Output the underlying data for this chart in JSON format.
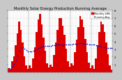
{
  "title": "Monthly Solar Energy Production Running Average",
  "bar_color": "#dd0000",
  "avg_dot_color": "#0000cc",
  "background_color": "#c8c8c8",
  "plot_bg_color": "#ffffff",
  "grid_color": "#aaaaaa",
  "ylim": [
    0,
    8
  ],
  "ytick_labels": [
    "1",
    "2",
    "3",
    "4",
    "5",
    "6",
    "7",
    "8"
  ],
  "ytick_values": [
    1,
    2,
    3,
    4,
    5,
    6,
    7,
    8
  ],
  "values": [
    0.5,
    0.3,
    1.4,
    2.0,
    3.5,
    5.0,
    6.5,
    5.5,
    3.8,
    2.0,
    0.9,
    0.4,
    0.9,
    0.5,
    1.8,
    3.2,
    5.2,
    6.8,
    7.5,
    6.2,
    4.5,
    2.8,
    1.1,
    0.6,
    1.0,
    0.7,
    2.2,
    3.8,
    5.5,
    7.0,
    7.0,
    6.0,
    4.8,
    3.0,
    1.4,
    0.7,
    1.1,
    0.9,
    2.6,
    4.2,
    5.8,
    7.3,
    6.8,
    5.8,
    4.3,
    2.6,
    1.2,
    0.5,
    0.9,
    0.4,
    1.8,
    3.5,
    5.2,
    6.5,
    6.2,
    5.2,
    3.8,
    2.3,
    0.9,
    0.3
  ],
  "running_avg_window": 12,
  "legend_bar_label": "Monthly kWh",
  "legend_avg_label": "Running Avg",
  "title_fontsize": 3.8,
  "tick_fontsize": 2.8,
  "legend_fontsize": 2.5
}
